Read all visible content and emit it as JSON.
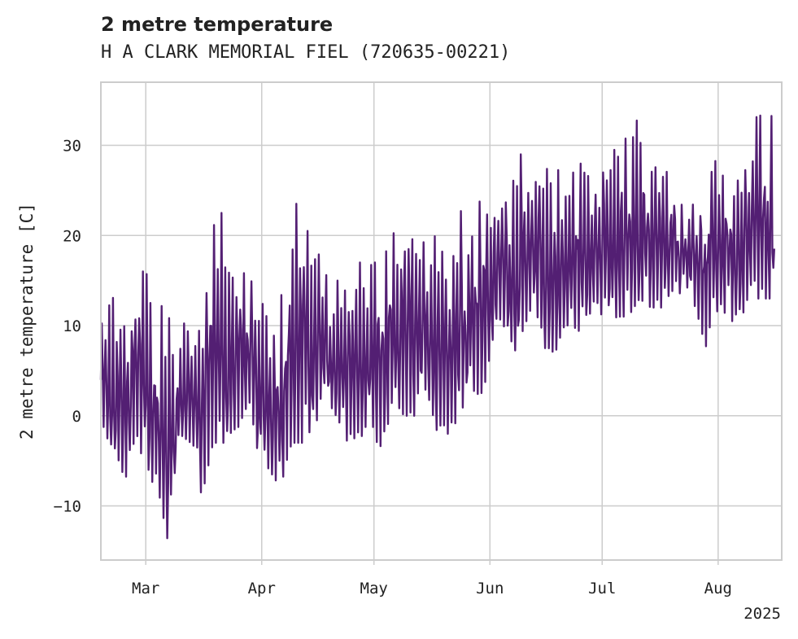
{
  "chart_data": {
    "type": "line",
    "title": "2 metre temperature",
    "subtitle": "H A CLARK MEMORIAL FIEL (720635-00221)",
    "xlabel": "",
    "ylabel": "2 metre temperature [C]",
    "xlim": [
      "2025-02-17",
      "2025-08-18"
    ],
    "ylim": [
      -16,
      37
    ],
    "x_ticks": [
      {
        "label": "Mar",
        "date": "2025-03-01"
      },
      {
        "label": "Apr",
        "date": "2025-04-01"
      },
      {
        "label": "May",
        "date": "2025-05-01"
      },
      {
        "label": "Jun",
        "date": "2025-06-01"
      },
      {
        "label": "Jul",
        "date": "2025-07-01"
      },
      {
        "label": "Aug",
        "date": "2025-08-01"
      }
    ],
    "x_offset_label": "2025",
    "y_ticks": [
      -10,
      0,
      10,
      20,
      30
    ],
    "grid": true,
    "legend": "none",
    "series": [
      {
        "name": "",
        "color": "#531f73",
        "x": [
          "2025-02-17",
          "2025-02-20",
          "2025-02-23",
          "2025-02-26",
          "2025-03-01",
          "2025-03-04",
          "2025-03-07",
          "2025-03-10",
          "2025-03-13",
          "2025-03-16",
          "2025-03-19",
          "2025-03-22",
          "2025-03-25",
          "2025-03-28",
          "2025-03-31",
          "2025-04-03",
          "2025-04-06",
          "2025-04-09",
          "2025-04-12",
          "2025-04-15",
          "2025-04-18",
          "2025-04-21",
          "2025-04-24",
          "2025-04-27",
          "2025-04-30",
          "2025-05-03",
          "2025-05-06",
          "2025-05-09",
          "2025-05-12",
          "2025-05-15",
          "2025-05-18",
          "2025-05-21",
          "2025-05-24",
          "2025-05-27",
          "2025-05-30",
          "2025-06-02",
          "2025-06-05",
          "2025-06-08",
          "2025-06-11",
          "2025-06-14",
          "2025-06-17",
          "2025-06-20",
          "2025-06-23",
          "2025-06-26",
          "2025-06-29",
          "2025-07-02",
          "2025-07-05",
          "2025-07-08",
          "2025-07-11",
          "2025-07-14",
          "2025-07-17",
          "2025-07-20",
          "2025-07-23",
          "2025-07-26",
          "2025-07-29",
          "2025-08-01",
          "2025-08-04",
          "2025-08-07",
          "2025-08-10",
          "2025-08-13",
          "2025-08-16"
        ],
        "daily_min": [
          0,
          -5,
          -8,
          -3,
          -5,
          -9,
          -14,
          -2,
          -3,
          -9,
          -3,
          -3,
          -2,
          1,
          -4,
          -6,
          -8,
          -3,
          -3,
          -1,
          1,
          0,
          -3,
          -3,
          0,
          -5,
          2,
          0,
          0,
          3,
          -2,
          -2,
          0,
          3,
          2,
          9,
          10,
          7,
          10,
          11,
          5,
          9,
          10,
          9,
          13,
          10,
          11,
          11,
          13,
          12,
          12,
          13,
          14,
          12,
          7,
          12,
          11,
          9,
          13,
          13,
          13
        ],
        "daily_max": [
          10,
          13,
          14,
          19,
          16,
          13,
          11,
          9,
          12,
          14,
          21,
          23,
          16,
          17,
          12,
          13,
          18,
          24,
          25,
          20,
          18,
          16,
          18,
          17,
          17,
          17,
          20,
          23,
          23,
          18,
          26,
          24,
          25,
          26,
          28,
          24,
          28,
          29,
          29,
          30,
          31,
          26,
          28,
          31,
          28,
          31,
          29,
          32,
          33,
          32,
          30,
          28,
          27,
          28,
          27,
          31,
          31,
          30,
          33,
          34,
          33
        ]
      }
    ]
  }
}
